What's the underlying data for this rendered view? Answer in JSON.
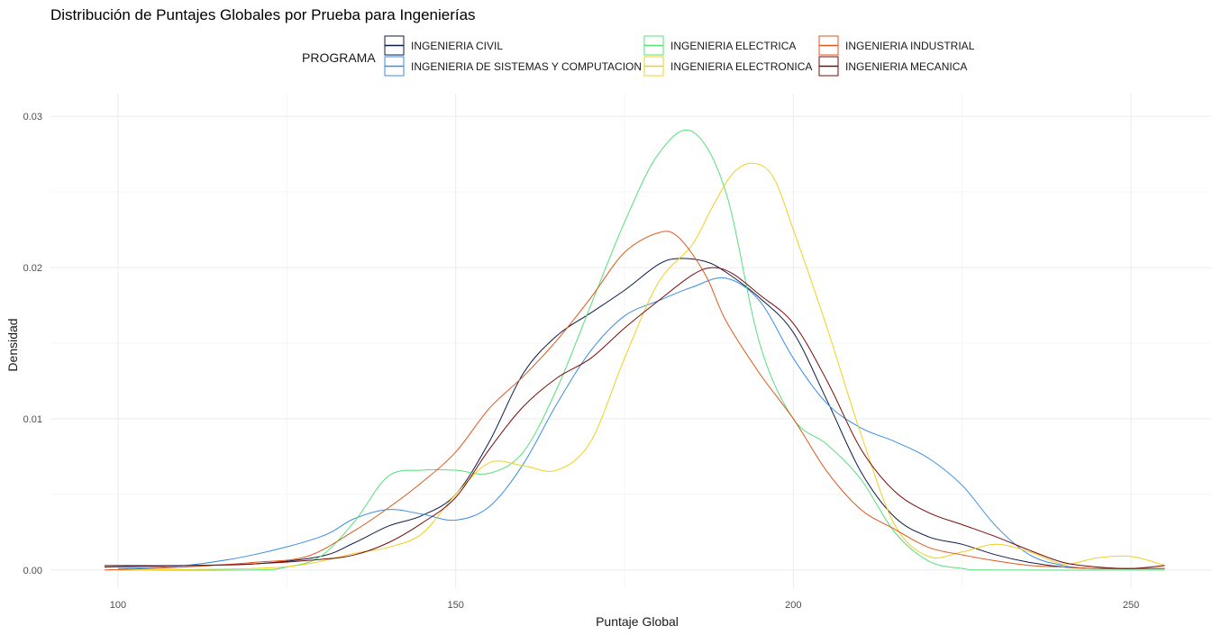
{
  "chart_data": {
    "type": "line",
    "title": "Distribución de Puntajes Globales por Prueba para Ingenierías",
    "xlabel": "Puntaje Global",
    "ylabel": "Densidad",
    "xlim": [
      90,
      262
    ],
    "ylim": [
      -0.0012,
      0.0315
    ],
    "x_ticks": [
      100,
      150,
      200,
      250
    ],
    "x_tick_labels": [
      "100",
      "150",
      "200",
      "250"
    ],
    "y_ticks": [
      0,
      0.01,
      0.02,
      0.03
    ],
    "y_tick_labels": [
      "0.00",
      "0.01",
      "0.02",
      "0.03"
    ],
    "grid": true,
    "legend": {
      "title": "PROGRAMA",
      "placement": "top",
      "columns": 3
    },
    "series": [
      {
        "name": "INGENIERIA CIVIL",
        "color": "#0d1a4a",
        "legend_row": 0,
        "legend_col": 0,
        "points": [
          [
            98,
            0.0002
          ],
          [
            110,
            0.0003
          ],
          [
            120,
            0.0004
          ],
          [
            130,
            0.0009
          ],
          [
            135,
            0.0018
          ],
          [
            140,
            0.0029
          ],
          [
            145,
            0.0036
          ],
          [
            150,
            0.005
          ],
          [
            155,
            0.0085
          ],
          [
            160,
            0.013
          ],
          [
            165,
            0.0155
          ],
          [
            170,
            0.017
          ],
          [
            175,
            0.0185
          ],
          [
            180,
            0.0202
          ],
          [
            183,
            0.0206
          ],
          [
            187,
            0.0204
          ],
          [
            190,
            0.0197
          ],
          [
            195,
            0.018
          ],
          [
            200,
            0.0157
          ],
          [
            205,
            0.0112
          ],
          [
            210,
            0.0065
          ],
          [
            215,
            0.0035
          ],
          [
            220,
            0.0022
          ],
          [
            225,
            0.0017
          ],
          [
            230,
            0.001
          ],
          [
            235,
            0.0005
          ],
          [
            240,
            0.0002
          ],
          [
            245,
            0.0001
          ],
          [
            255,
            0.0001
          ]
        ]
      },
      {
        "name": "INGENIERIA DE SISTEMAS Y COMPUTACION",
        "color": "#3a8ee6",
        "legend_row": 1,
        "legend_col": 0,
        "points": [
          [
            100,
            0.0001
          ],
          [
            110,
            0.0003
          ],
          [
            120,
            0.001
          ],
          [
            130,
            0.0022
          ],
          [
            135,
            0.0034
          ],
          [
            140,
            0.004
          ],
          [
            145,
            0.0037
          ],
          [
            150,
            0.0033
          ],
          [
            155,
            0.0042
          ],
          [
            160,
            0.007
          ],
          [
            165,
            0.011
          ],
          [
            170,
            0.0145
          ],
          [
            175,
            0.0168
          ],
          [
            180,
            0.0178
          ],
          [
            185,
            0.0187
          ],
          [
            190,
            0.0193
          ],
          [
            195,
            0.0178
          ],
          [
            200,
            0.014
          ],
          [
            205,
            0.011
          ],
          [
            210,
            0.0094
          ],
          [
            215,
            0.0085
          ],
          [
            220,
            0.0074
          ],
          [
            225,
            0.0056
          ],
          [
            230,
            0.0029
          ],
          [
            235,
            0.001
          ],
          [
            240,
            0.0003
          ],
          [
            245,
            0.0001
          ],
          [
            255,
            0.0001
          ]
        ]
      },
      {
        "name": "INGENIERIA ELECTRICA",
        "color": "#55e07a",
        "legend_row": 0,
        "legend_col": 1,
        "points": [
          [
            100,
            0.0
          ],
          [
            120,
            0.0
          ],
          [
            125,
            0.0002
          ],
          [
            130,
            0.0009
          ],
          [
            135,
            0.0032
          ],
          [
            140,
            0.0062
          ],
          [
            145,
            0.0066
          ],
          [
            150,
            0.0066
          ],
          [
            155,
            0.0064
          ],
          [
            160,
            0.0078
          ],
          [
            165,
            0.012
          ],
          [
            170,
            0.0175
          ],
          [
            175,
            0.023
          ],
          [
            180,
            0.0275
          ],
          [
            185,
            0.029
          ],
          [
            190,
            0.025
          ],
          [
            195,
            0.015
          ],
          [
            200,
            0.01
          ],
          [
            205,
            0.0083
          ],
          [
            210,
            0.006
          ],
          [
            215,
            0.0025
          ],
          [
            220,
            0.0006
          ],
          [
            225,
            0.0001
          ],
          [
            230,
            0.0
          ],
          [
            255,
            0.0
          ]
        ]
      },
      {
        "name": "INGENIERIA ELECTRONICA",
        "color": "#f0d020",
        "legend_row": 1,
        "legend_col": 1,
        "points": [
          [
            100,
            0.0
          ],
          [
            120,
            0.0001
          ],
          [
            128,
            0.0004
          ],
          [
            135,
            0.0011
          ],
          [
            140,
            0.0015
          ],
          [
            145,
            0.0024
          ],
          [
            150,
            0.005
          ],
          [
            155,
            0.0071
          ],
          [
            160,
            0.0069
          ],
          [
            165,
            0.0066
          ],
          [
            170,
            0.0085
          ],
          [
            175,
            0.014
          ],
          [
            180,
            0.019
          ],
          [
            185,
            0.0215
          ],
          [
            188,
            0.024
          ],
          [
            191,
            0.0262
          ],
          [
            194,
            0.0269
          ],
          [
            197,
            0.026
          ],
          [
            200,
            0.0225
          ],
          [
            205,
            0.016
          ],
          [
            210,
            0.009
          ],
          [
            215,
            0.003
          ],
          [
            220,
            0.0009
          ],
          [
            225,
            0.0012
          ],
          [
            230,
            0.0017
          ],
          [
            235,
            0.0012
          ],
          [
            240,
            0.0004
          ],
          [
            245,
            0.0008
          ],
          [
            250,
            0.0009
          ],
          [
            255,
            0.0003
          ]
        ]
      },
      {
        "name": "INGENIERIA INDUSTRIAL",
        "color": "#e0571a",
        "legend_row": 0,
        "legend_col": 2,
        "points": [
          [
            98,
            0.0
          ],
          [
            110,
            0.0002
          ],
          [
            120,
            0.0005
          ],
          [
            128,
            0.0009
          ],
          [
            135,
            0.0026
          ],
          [
            140,
            0.0041
          ],
          [
            145,
            0.0058
          ],
          [
            150,
            0.0078
          ],
          [
            155,
            0.0107
          ],
          [
            160,
            0.0128
          ],
          [
            165,
            0.0152
          ],
          [
            170,
            0.018
          ],
          [
            175,
            0.021
          ],
          [
            180,
            0.0223
          ],
          [
            183,
            0.022
          ],
          [
            187,
            0.0195
          ],
          [
            190,
            0.0165
          ],
          [
            195,
            0.013
          ],
          [
            200,
            0.01
          ],
          [
            205,
            0.0065
          ],
          [
            210,
            0.004
          ],
          [
            215,
            0.0027
          ],
          [
            220,
            0.0015
          ],
          [
            225,
            0.001
          ],
          [
            230,
            0.0006
          ],
          [
            235,
            0.0003
          ],
          [
            240,
            0.0002
          ],
          [
            245,
            0.0001
          ],
          [
            255,
            0.0001
          ]
        ]
      },
      {
        "name": "INGENIERIA MECANICA",
        "color": "#7a0a0a",
        "legend_row": 1,
        "legend_col": 2,
        "points": [
          [
            98,
            0.0003
          ],
          [
            110,
            0.0003
          ],
          [
            120,
            0.0004
          ],
          [
            130,
            0.0007
          ],
          [
            135,
            0.001
          ],
          [
            140,
            0.0018
          ],
          [
            145,
            0.0031
          ],
          [
            150,
            0.0048
          ],
          [
            155,
            0.008
          ],
          [
            160,
            0.0108
          ],
          [
            165,
            0.0127
          ],
          [
            170,
            0.014
          ],
          [
            175,
            0.016
          ],
          [
            180,
            0.0178
          ],
          [
            185,
            0.0195
          ],
          [
            188,
            0.02
          ],
          [
            191,
            0.0196
          ],
          [
            195,
            0.0182
          ],
          [
            200,
            0.0163
          ],
          [
            205,
            0.0125
          ],
          [
            210,
            0.008
          ],
          [
            215,
            0.0052
          ],
          [
            220,
            0.0038
          ],
          [
            225,
            0.003
          ],
          [
            230,
            0.0022
          ],
          [
            235,
            0.0013
          ],
          [
            240,
            0.0005
          ],
          [
            245,
            0.0002
          ],
          [
            250,
            0.0001
          ],
          [
            255,
            0.0003
          ]
        ]
      }
    ]
  }
}
